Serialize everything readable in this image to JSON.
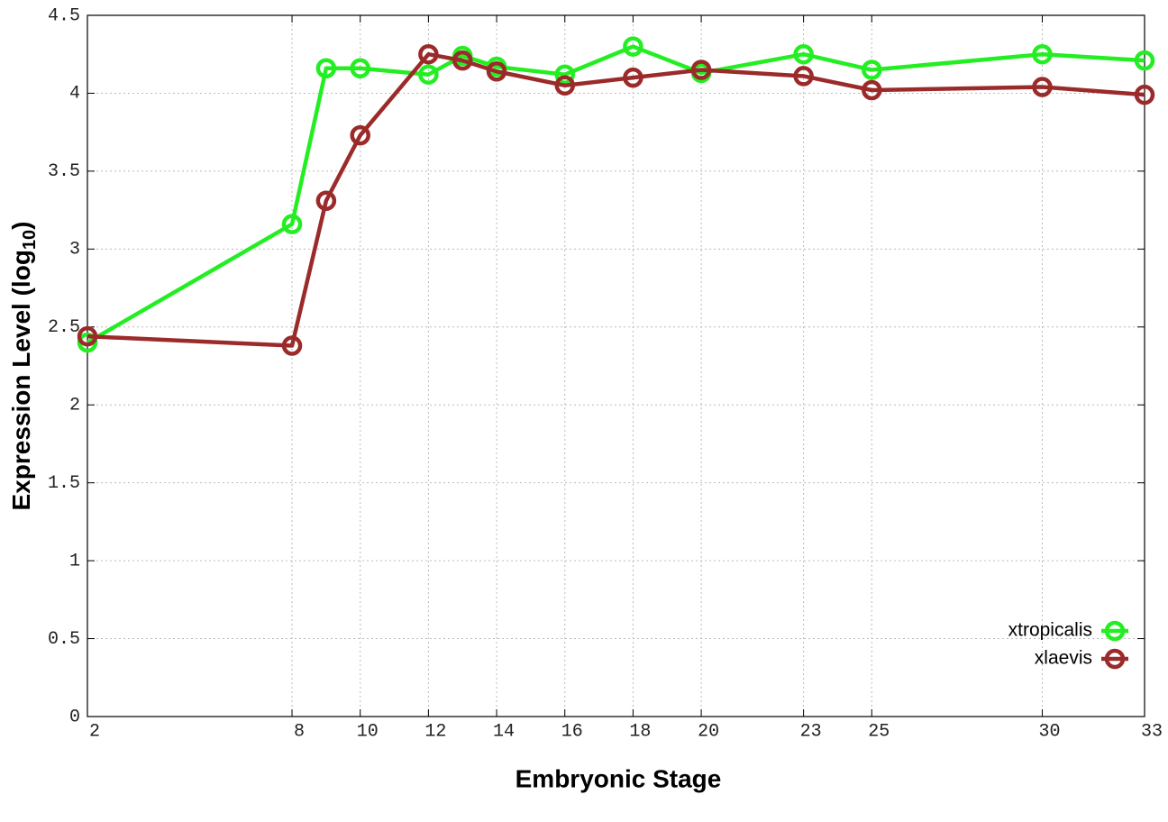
{
  "chart_data": {
    "type": "line",
    "xlabel": "Embryonic Stage",
    "ylabel": [
      "Expression Level (log",
      "10",
      ")"
    ],
    "x": [
      2,
      8,
      9,
      10,
      12,
      13,
      14,
      16,
      18,
      20,
      23,
      25,
      30,
      33
    ],
    "series": [
      {
        "name": "xtropicalis",
        "color": "#22ee22",
        "values": [
          2.4,
          3.16,
          4.16,
          4.16,
          4.12,
          4.24,
          4.17,
          4.12,
          4.3,
          4.13,
          4.25,
          4.15,
          4.25,
          4.21
        ]
      },
      {
        "name": "xlaevis",
        "color": "#9b2a2a",
        "values": [
          2.44,
          2.38,
          3.31,
          3.73,
          4.25,
          4.21,
          4.14,
          4.05,
          4.1,
          4.15,
          4.11,
          4.02,
          4.04,
          3.99
        ]
      }
    ],
    "xlim": [
      2,
      33
    ],
    "xticks": [
      2,
      8,
      10,
      12,
      14,
      16,
      18,
      20,
      23,
      25,
      30,
      33
    ],
    "ylim": [
      0,
      4.5
    ],
    "yticks": [
      0,
      0.5,
      1,
      1.5,
      2,
      2.5,
      3,
      3.5,
      4,
      4.5
    ],
    "grid": true,
    "legend": "lower-right"
  }
}
